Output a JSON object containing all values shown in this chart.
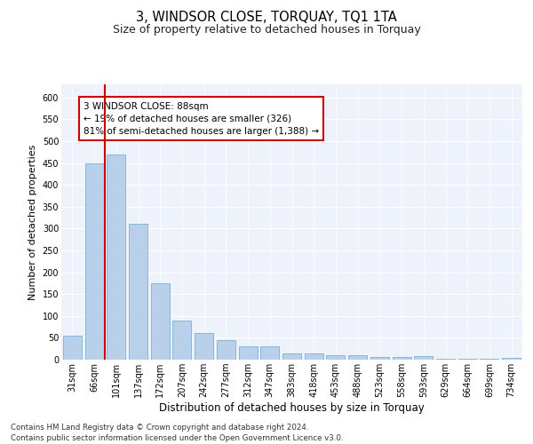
{
  "title": "3, WINDSOR CLOSE, TORQUAY, TQ1 1TA",
  "subtitle": "Size of property relative to detached houses in Torquay",
  "xlabel": "Distribution of detached houses by size in Torquay",
  "ylabel": "Number of detached properties",
  "categories": [
    "31sqm",
    "66sqm",
    "101sqm",
    "137sqm",
    "172sqm",
    "207sqm",
    "242sqm",
    "277sqm",
    "312sqm",
    "347sqm",
    "383sqm",
    "418sqm",
    "453sqm",
    "488sqm",
    "523sqm",
    "558sqm",
    "593sqm",
    "629sqm",
    "664sqm",
    "699sqm",
    "734sqm"
  ],
  "values": [
    55,
    450,
    470,
    310,
    175,
    90,
    60,
    45,
    30,
    30,
    15,
    15,
    10,
    10,
    7,
    7,
    9,
    3,
    3,
    3,
    5
  ],
  "bar_color": "#b8d0ea",
  "bar_edge_color": "#7aafd4",
  "vline_x": 1.5,
  "vline_color": "#cc0000",
  "annotation_text": "3 WINDSOR CLOSE: 88sqm\n← 19% of detached houses are smaller (326)\n81% of semi-detached houses are larger (1,388) →",
  "annotation_box_facecolor": "#ffffff",
  "annotation_box_edgecolor": "#cc0000",
  "ylim": [
    0,
    630
  ],
  "yticks": [
    0,
    50,
    100,
    150,
    200,
    250,
    300,
    350,
    400,
    450,
    500,
    550,
    600
  ],
  "background_color": "#eef2fa",
  "footer1": "Contains HM Land Registry data © Crown copyright and database right 2024.",
  "footer2": "Contains public sector information licensed under the Open Government Licence v3.0.",
  "title_fontsize": 10.5,
  "subtitle_fontsize": 9,
  "xlabel_fontsize": 8.5,
  "ylabel_fontsize": 8,
  "tick_fontsize": 7,
  "annotation_fontsize": 7.5,
  "footer_fontsize": 6.2
}
